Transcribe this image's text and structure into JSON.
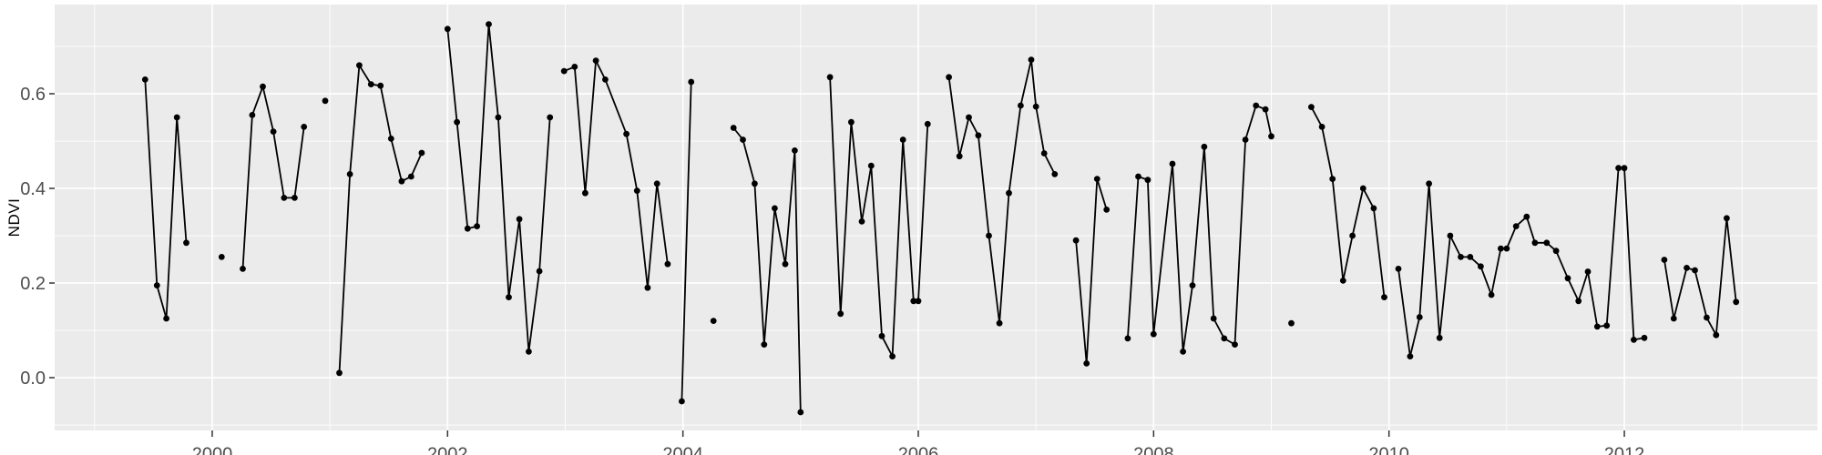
{
  "chart_data": {
    "type": "line",
    "title": "",
    "xlabel": "",
    "ylabel": "NDVI",
    "legend_position": "none",
    "grid": true,
    "x_domain": [
      1998.661,
      2013.641
    ],
    "y_domain": [
      -0.1115,
      0.7885
    ],
    "x_major_ticks": [
      2000,
      2002,
      2004,
      2006,
      2008,
      2010,
      2012
    ],
    "x_tick_labels": [
      "2000",
      "2002",
      "2004",
      "2006",
      "2008",
      "2010",
      "2012"
    ],
    "x_minor_ticks": [
      1999,
      2001,
      2003,
      2005,
      2007,
      2009,
      2011,
      2013
    ],
    "y_major_ticks": [
      0.0,
      0.2,
      0.4,
      0.6
    ],
    "y_tick_labels": [
      "0.0",
      "0.2",
      "0.4",
      "0.6"
    ],
    "y_minor_ticks": [
      -0.1,
      0.1,
      0.3,
      0.5,
      0.7
    ],
    "colors": {
      "panel_bg": "#EBEBEB",
      "grid": "#FFFFFF",
      "line": "#000000",
      "point": "#000000",
      "axis_text": "#4D4D4D",
      "axis_title": "#000000",
      "tick_mark": "#333333"
    },
    "series_name": "NDVI",
    "segments": [
      [
        [
          1999.43,
          0.63
        ],
        [
          1999.53,
          0.195
        ],
        [
          1999.61,
          0.125
        ],
        [
          1999.7,
          0.55
        ],
        [
          1999.78,
          0.285
        ]
      ],
      [
        [
          2000.08,
          0.255
        ]
      ],
      [
        [
          2000.26,
          0.23
        ],
        [
          2000.34,
          0.555
        ],
        [
          2000.43,
          0.615
        ],
        [
          2000.52,
          0.52
        ],
        [
          2000.61,
          0.38
        ],
        [
          2000.7,
          0.38
        ],
        [
          2000.78,
          0.53
        ]
      ],
      [
        [
          2000.96,
          0.585
        ]
      ],
      [
        [
          2001.08,
          0.01
        ],
        [
          2001.17,
          0.43
        ],
        [
          2001.25,
          0.66
        ],
        [
          2001.35,
          0.62
        ],
        [
          2001.43,
          0.617
        ],
        [
          2001.52,
          0.505
        ],
        [
          2001.61,
          0.415
        ],
        [
          2001.69,
          0.425
        ],
        [
          2001.78,
          0.475
        ]
      ],
      [
        [
          2002.0,
          0.737
        ],
        [
          2002.08,
          0.54
        ],
        [
          2002.17,
          0.315
        ],
        [
          2002.25,
          0.32
        ],
        [
          2002.35,
          0.747
        ],
        [
          2002.43,
          0.55
        ],
        [
          2002.52,
          0.17
        ],
        [
          2002.61,
          0.335
        ],
        [
          2002.69,
          0.055
        ],
        [
          2002.78,
          0.225
        ],
        [
          2002.87,
          0.55
        ]
      ],
      [
        [
          2002.99,
          0.648
        ],
        [
          2003.08,
          0.657
        ],
        [
          2003.17,
          0.39
        ],
        [
          2003.26,
          0.67
        ],
        [
          2003.34,
          0.63
        ],
        [
          2003.52,
          0.515
        ],
        [
          2003.61,
          0.395
        ],
        [
          2003.7,
          0.19
        ],
        [
          2003.78,
          0.41
        ],
        [
          2003.87,
          0.24
        ]
      ],
      [
        [
          2003.99,
          -0.05
        ],
        [
          2004.07,
          0.625
        ]
      ],
      [
        [
          2004.26,
          0.12
        ]
      ],
      [
        [
          2004.43,
          0.528
        ],
        [
          2004.51,
          0.503
        ],
        [
          2004.61,
          0.41
        ],
        [
          2004.69,
          0.07
        ],
        [
          2004.78,
          0.358
        ],
        [
          2004.87,
          0.24
        ],
        [
          2004.95,
          0.48
        ],
        [
          2005.0,
          -0.073
        ]
      ],
      [
        [
          2005.25,
          0.635
        ],
        [
          2005.34,
          0.135
        ],
        [
          2005.43,
          0.54
        ],
        [
          2005.52,
          0.33
        ],
        [
          2005.6,
          0.448
        ],
        [
          2005.69,
          0.088
        ],
        [
          2005.78,
          0.045
        ],
        [
          2005.87,
          0.503
        ],
        [
          2005.96,
          0.162
        ],
        [
          2006.0,
          0.162
        ],
        [
          2006.08,
          0.536
        ]
      ],
      [
        [
          2006.26,
          0.635
        ],
        [
          2006.35,
          0.468
        ],
        [
          2006.43,
          0.55
        ],
        [
          2006.51,
          0.512
        ],
        [
          2006.6,
          0.3
        ],
        [
          2006.69,
          0.115
        ],
        [
          2006.77,
          0.39
        ],
        [
          2006.87,
          0.575
        ],
        [
          2006.96,
          0.672
        ],
        [
          2007.0,
          0.573
        ],
        [
          2007.07,
          0.474
        ],
        [
          2007.16,
          0.43
        ]
      ],
      [
        [
          2007.34,
          0.29
        ],
        [
          2007.43,
          0.03
        ],
        [
          2007.52,
          0.42
        ],
        [
          2007.6,
          0.355
        ]
      ],
      [
        [
          2007.78,
          0.083
        ],
        [
          2007.87,
          0.425
        ],
        [
          2007.95,
          0.418
        ],
        [
          2008.0,
          0.092
        ],
        [
          2008.16,
          0.452
        ],
        [
          2008.25,
          0.055
        ],
        [
          2008.33,
          0.195
        ],
        [
          2008.43,
          0.488
        ],
        [
          2008.51,
          0.125
        ],
        [
          2008.6,
          0.083
        ],
        [
          2008.69,
          0.07
        ],
        [
          2008.78,
          0.503
        ],
        [
          2008.87,
          0.575
        ],
        [
          2008.95,
          0.567
        ],
        [
          2009.0,
          0.51
        ]
      ],
      [
        [
          2009.17,
          0.115
        ]
      ],
      [
        [
          2009.34,
          0.572
        ],
        [
          2009.43,
          0.53
        ],
        [
          2009.52,
          0.42
        ],
        [
          2009.61,
          0.205
        ],
        [
          2009.69,
          0.3
        ],
        [
          2009.78,
          0.4
        ],
        [
          2009.87,
          0.358
        ],
        [
          2009.96,
          0.17
        ]
      ],
      [
        [
          2010.08,
          0.23
        ],
        [
          2010.18,
          0.045
        ],
        [
          2010.26,
          0.128
        ],
        [
          2010.34,
          0.41
        ],
        [
          2010.43,
          0.084
        ],
        [
          2010.52,
          0.3
        ],
        [
          2010.61,
          0.255
        ],
        [
          2010.69,
          0.255
        ],
        [
          2010.78,
          0.235
        ],
        [
          2010.87,
          0.175
        ],
        [
          2010.95,
          0.273
        ],
        [
          2011.0,
          0.273
        ],
        [
          2011.08,
          0.32
        ],
        [
          2011.17,
          0.34
        ],
        [
          2011.24,
          0.285
        ],
        [
          2011.34,
          0.285
        ],
        [
          2011.42,
          0.268
        ],
        [
          2011.52,
          0.21
        ],
        [
          2011.61,
          0.162
        ],
        [
          2011.69,
          0.224
        ],
        [
          2011.77,
          0.108
        ],
        [
          2011.85,
          0.11
        ],
        [
          2011.95,
          0.443
        ],
        [
          2012.0,
          0.443
        ],
        [
          2012.08,
          0.08
        ],
        [
          2012.17,
          0.084
        ]
      ],
      [
        [
          2012.34,
          0.249
        ],
        [
          2012.42,
          0.125
        ],
        [
          2012.53,
          0.232
        ],
        [
          2012.6,
          0.227
        ],
        [
          2012.7,
          0.127
        ],
        [
          2012.78,
          0.09
        ],
        [
          2012.87,
          0.337
        ],
        [
          2012.95,
          0.16
        ]
      ]
    ]
  }
}
